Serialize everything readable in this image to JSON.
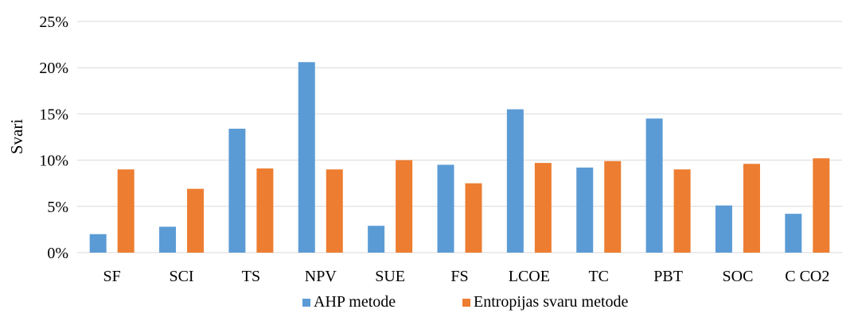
{
  "chart_data": {
    "type": "bar",
    "title": "",
    "xlabel": "",
    "ylabel": "Svari",
    "ylim": [
      0,
      25
    ],
    "yticks": [
      0,
      5,
      10,
      15,
      20,
      25
    ],
    "ytick_labels": [
      "0%",
      "5%",
      "10%",
      "15%",
      "20%",
      "25%"
    ],
    "grid": true,
    "legend_position": "bottom",
    "categories": [
      "SF",
      "SCI",
      "TS",
      "NPV",
      "SUE",
      "FS",
      "LCOE",
      "TC",
      "PBT",
      "SOC",
      "C CO2"
    ],
    "series": [
      {
        "name": "AHP metode",
        "color": "#5b9bd5",
        "values": [
          2.0,
          2.8,
          13.4,
          20.6,
          2.9,
          9.5,
          15.5,
          9.2,
          14.5,
          5.1,
          4.2
        ]
      },
      {
        "name": "Entropijas svaru metode",
        "color": "#ed7d31",
        "values": [
          9.0,
          6.9,
          9.1,
          9.0,
          10.0,
          7.5,
          9.7,
          9.9,
          9.0,
          9.6,
          10.2
        ]
      }
    ]
  }
}
